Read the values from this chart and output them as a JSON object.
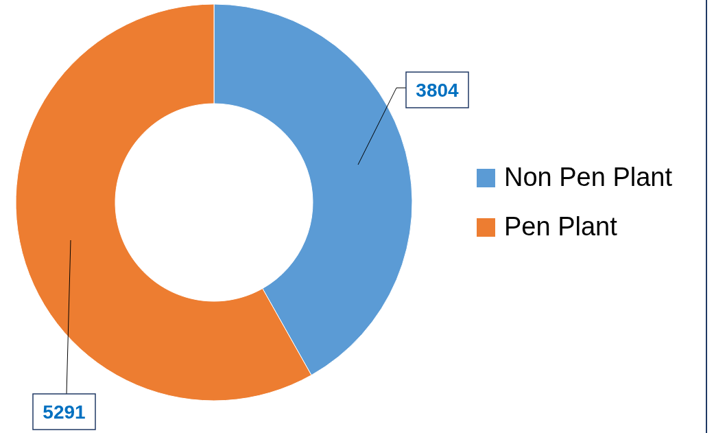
{
  "chart_data": {
    "type": "donut",
    "categories": [
      "Non Pen Plant",
      "Pen Plant"
    ],
    "values": [
      3804,
      5291
    ],
    "colors": [
      "#5b9bd5",
      "#ed7d31"
    ],
    "data_labels": true,
    "legend": "right"
  }
}
